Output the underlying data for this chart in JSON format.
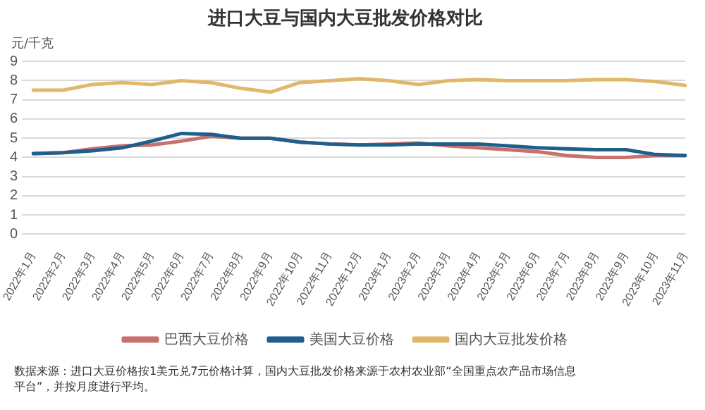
{
  "chart_data": {
    "type": "line",
    "title": "进口大豆与国内大豆批发价格对比",
    "ylabel": "元/千克",
    "categories": [
      "2022年1月",
      "2022年2月",
      "2022年3月",
      "2022年4月",
      "2022年5月",
      "2022年6月",
      "2022年7月",
      "2022年8月",
      "2022年9月",
      "2022年10月",
      "2022年11月",
      "2022年12月",
      "2023年1月",
      "2023年2月",
      "2023年3月",
      "2023年4月",
      "2023年5月",
      "2023年6月",
      "2023年7月",
      "2023年8月",
      "2023年9月",
      "2023年10月",
      "2023年11月"
    ],
    "series": [
      {
        "name": "巴西大豆价格",
        "color": "#c8706e",
        "values": [
          4.2,
          4.25,
          4.45,
          4.6,
          4.65,
          4.85,
          5.1,
          5.0,
          5.0,
          4.8,
          4.7,
          4.65,
          4.7,
          4.75,
          4.6,
          4.5,
          4.4,
          4.3,
          4.1,
          4.0,
          4.0,
          4.1,
          4.1
        ]
      },
      {
        "name": "美国大豆价格",
        "color": "#1f5f8b",
        "values": [
          4.2,
          4.25,
          4.35,
          4.5,
          4.85,
          5.25,
          5.2,
          5.0,
          5.0,
          4.8,
          4.7,
          4.65,
          4.65,
          4.7,
          4.7,
          4.7,
          4.6,
          4.5,
          4.45,
          4.4,
          4.4,
          4.15,
          4.1
        ]
      },
      {
        "name": "国内大豆批发价格",
        "color": "#e0b86a",
        "values": [
          7.5,
          7.5,
          7.8,
          7.9,
          7.8,
          8.0,
          7.9,
          7.6,
          7.4,
          7.9,
          8.0,
          8.1,
          8.0,
          7.8,
          8.0,
          8.05,
          8.0,
          8.0,
          8.0,
          8.05,
          8.05,
          7.95,
          7.75
        ]
      }
    ],
    "ylim": [
      0,
      9
    ],
    "yticks": [
      0,
      1,
      2,
      3,
      4,
      5,
      6,
      7,
      8,
      9
    ],
    "grid": "y",
    "legend": "bottom",
    "marker": "none",
    "line_style": "solid",
    "annotations": [
      "数据来源：进口大豆价格按1美元兑7元价格计算，国内大豆批发价格来源于农村农业部“全国重点农产品市场信息平台”，并按月度进行平均。"
    ]
  }
}
